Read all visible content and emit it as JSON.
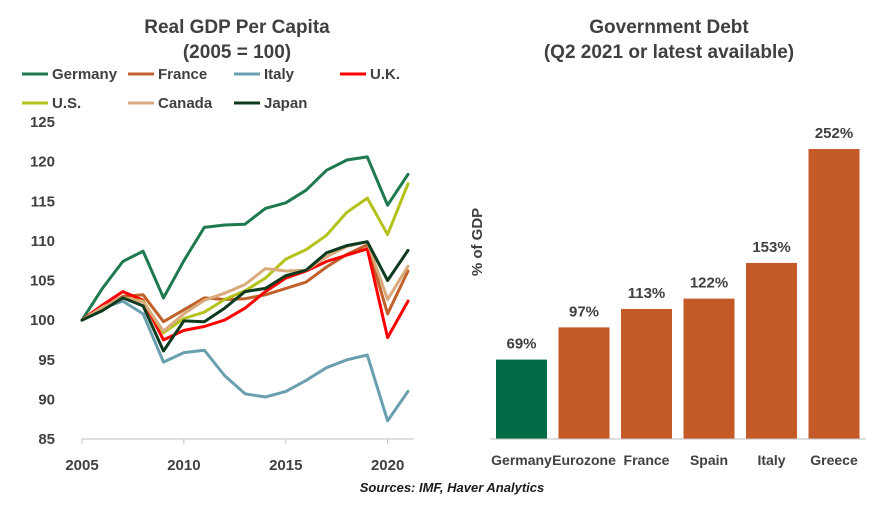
{
  "source": "Sources: IMF, Haver Analytics",
  "chart_data": [
    {
      "type": "line",
      "title": "Real GDP Per Capita",
      "subtitle": "(2005 = 100)",
      "xlabel": "",
      "ylabel": "",
      "xlim": [
        2005,
        2021
      ],
      "ylim": [
        85,
        125
      ],
      "xticks": [
        2005,
        2010,
        2015,
        2020
      ],
      "yticks": [
        85,
        90,
        95,
        100,
        105,
        110,
        115,
        120,
        125
      ],
      "legend_position": "top",
      "x": [
        2005,
        2006,
        2007,
        2008,
        2009,
        2010,
        2011,
        2012,
        2013,
        2014,
        2015,
        2016,
        2017,
        2018,
        2019,
        2020,
        2021
      ],
      "series": [
        {
          "name": "Germany",
          "color": "#1e7a4e",
          "values": [
            100,
            104,
            107.4,
            108.7,
            102.8,
            107.5,
            111.7,
            112,
            112.1,
            114.1,
            114.8,
            116.4,
            118.9,
            120.2,
            120.6,
            114.5,
            118.4
          ]
        },
        {
          "name": "France",
          "color": "#c0602a",
          "values": [
            100,
            101.5,
            103,
            103.2,
            99.8,
            101.3,
            102.8,
            102.6,
            102.7,
            103.2,
            104,
            104.8,
            106.7,
            108.3,
            109.5,
            100.8,
            106.2
          ]
        },
        {
          "name": "Italy",
          "color": "#6a9fb0",
          "values": [
            100,
            101.5,
            102.4,
            100.8,
            94.7,
            95.9,
            96.2,
            93,
            90.7,
            90.3,
            91,
            92.4,
            94,
            95,
            95.6,
            87.3,
            91
          ]
        },
        {
          "name": "U.K.",
          "color": "#ff0000",
          "values": [
            100,
            101.9,
            103.6,
            102.5,
            97.5,
            98.7,
            99.2,
            100,
            101.5,
            103.6,
            105.3,
            106.2,
            107.4,
            108.2,
            109,
            97.8,
            102.4
          ]
        },
        {
          "name": "U.S.",
          "color": "#b5c21b",
          "values": [
            100,
            101.6,
            102.8,
            102.4,
            98.4,
            100.2,
            101,
            102.6,
            103.7,
            105.3,
            107.7,
            108.9,
            110.7,
            113.6,
            115.4,
            110.8,
            117.2
          ]
        },
        {
          "name": "Canada",
          "color": "#d9aa7c",
          "values": [
            100,
            101.6,
            102.8,
            102.3,
            98.6,
            100.8,
            102.5,
            103.4,
            104.5,
            106.5,
            106.2,
            106.3,
            108,
            109.3,
            109.9,
            102.6,
            106.8
          ]
        },
        {
          "name": "Japan",
          "color": "#0d3b1f",
          "values": [
            100,
            101.2,
            102.8,
            101.8,
            96.1,
            99.9,
            99.8,
            101.5,
            103.6,
            104,
            105.6,
            106.3,
            108.5,
            109.4,
            109.9,
            105,
            108.8
          ]
        }
      ]
    },
    {
      "type": "bar",
      "title": "Government Debt",
      "subtitle": "(Q2 2021 or latest available)",
      "xlabel": "",
      "ylabel": "% of GDP",
      "ylim": [
        0,
        272
      ],
      "categories": [
        "Germany",
        "Eurozone",
        "France",
        "Spain",
        "Italy",
        "Greece"
      ],
      "values": [
        69,
        97,
        113,
        122,
        153,
        252
      ],
      "data_labels": [
        "69%",
        "97%",
        "113%",
        "122%",
        "153%",
        "252%"
      ],
      "colors": [
        "#006b45",
        "#c55a29",
        "#c55a29",
        "#c55a29",
        "#c55a29",
        "#c55a29"
      ]
    }
  ]
}
